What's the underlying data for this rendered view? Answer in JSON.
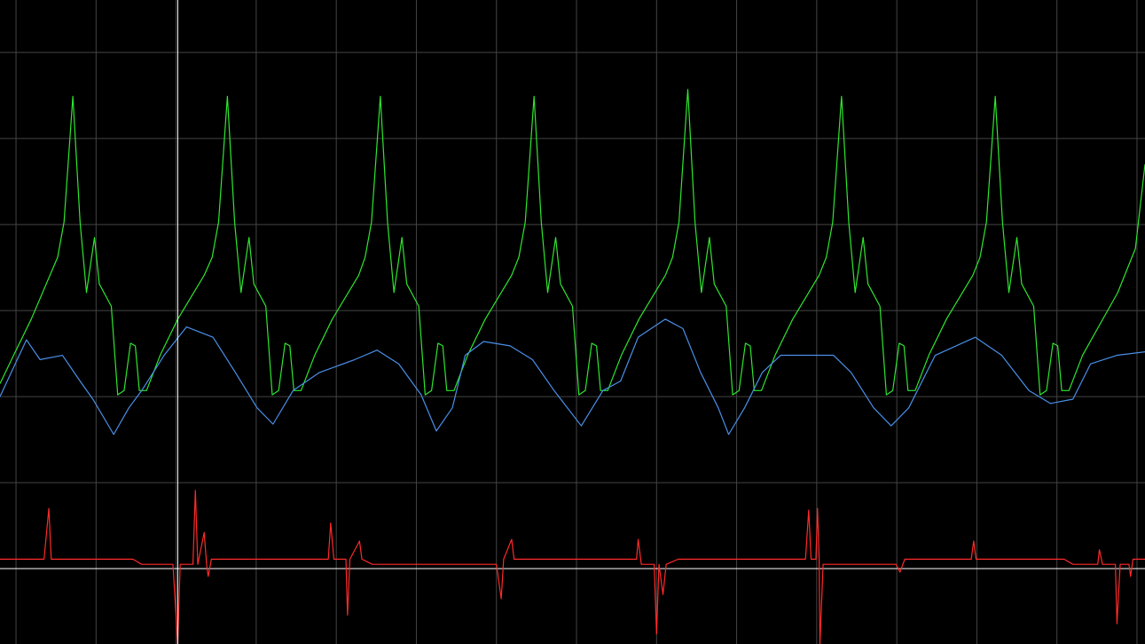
{
  "chart_data": {
    "type": "line",
    "background": "#000000",
    "grid": true,
    "grid_color": "#444444",
    "xlim": [
      -0.2,
      14.1
    ],
    "ylim": [
      -0.876,
      6.61
    ],
    "xticks": [
      0,
      1,
      2,
      3,
      4,
      5,
      6,
      7,
      8,
      9,
      10,
      11,
      12,
      13,
      14
    ],
    "yticks": [
      0,
      1,
      2,
      3,
      4,
      5,
      6
    ],
    "cursor_color": "#ffffff",
    "vlines": [
      2.02
    ],
    "hlines": [
      0
    ],
    "series": [
      {
        "color": "#2ee62e",
        "x": [
          -0.2,
          -0.03,
          0.19,
          0.52,
          0.6,
          0.71,
          0.8,
          0.88,
          0.98,
          1.04,
          1.19,
          1.27,
          1.35,
          1.43,
          1.49,
          1.54,
          1.63,
          1.8,
          2.02,
          2.35,
          2.45,
          2.53,
          2.64,
          2.73,
          2.81,
          2.91,
          2.97,
          3.12,
          3.2,
          3.28,
          3.36,
          3.42,
          3.47,
          3.56,
          3.73,
          3.95,
          4.28,
          4.36,
          4.44,
          4.55,
          4.64,
          4.72,
          4.82,
          4.88,
          5.03,
          5.11,
          5.19,
          5.27,
          5.33,
          5.38,
          5.47,
          5.64,
          5.86,
          6.19,
          6.28,
          6.36,
          6.47,
          6.56,
          6.64,
          6.74,
          6.8,
          6.95,
          7.03,
          7.11,
          7.19,
          7.25,
          7.3,
          7.39,
          7.56,
          7.78,
          8.11,
          8.2,
          8.28,
          8.39,
          8.48,
          8.56,
          8.66,
          8.72,
          8.87,
          8.95,
          9.03,
          9.11,
          9.17,
          9.22,
          9.31,
          9.48,
          9.7,
          10.03,
          10.12,
          10.2,
          10.31,
          10.4,
          10.48,
          10.58,
          10.64,
          10.79,
          10.87,
          10.95,
          11.03,
          11.09,
          11.14,
          11.23,
          11.4,
          11.62,
          11.95,
          12.04,
          12.12,
          12.23,
          12.32,
          12.4,
          12.5,
          12.56,
          12.71,
          12.79,
          12.87,
          12.95,
          13.01,
          13.06,
          13.15,
          13.32,
          13.76,
          13.98,
          14.1
        ],
        "values": [
          2.15,
          2.48,
          2.9,
          3.62,
          4.03,
          5.49,
          4.03,
          3.21,
          3.85,
          3.31,
          3.05,
          2.02,
          2.07,
          2.62,
          2.59,
          2.07,
          2.07,
          2.48,
          2.9,
          3.41,
          3.62,
          4.03,
          5.49,
          4.03,
          3.21,
          3.85,
          3.31,
          3.05,
          2.02,
          2.07,
          2.62,
          2.59,
          2.07,
          2.07,
          2.48,
          2.9,
          3.41,
          3.62,
          4.03,
          5.49,
          4.03,
          3.21,
          3.85,
          3.31,
          3.05,
          2.02,
          2.07,
          2.62,
          2.59,
          2.07,
          2.07,
          2.48,
          2.9,
          3.41,
          3.62,
          4.03,
          5.49,
          4.03,
          3.21,
          3.85,
          3.31,
          3.05,
          2.02,
          2.07,
          2.62,
          2.59,
          2.07,
          2.07,
          2.48,
          2.9,
          3.41,
          3.62,
          4.03,
          5.57,
          4.03,
          3.21,
          3.85,
          3.31,
          3.05,
          2.02,
          2.07,
          2.62,
          2.59,
          2.07,
          2.07,
          2.48,
          2.9,
          3.41,
          3.62,
          4.03,
          5.49,
          4.03,
          3.21,
          3.85,
          3.31,
          3.05,
          2.02,
          2.07,
          2.62,
          2.59,
          2.07,
          2.07,
          2.48,
          2.9,
          3.41,
          3.62,
          4.03,
          5.49,
          4.03,
          3.21,
          3.85,
          3.31,
          3.05,
          2.02,
          2.07,
          2.62,
          2.59,
          2.07,
          2.07,
          2.48,
          3.21,
          3.72,
          4.7
        ]
      },
      {
        "color": "#4a8fe8",
        "x": [
          -0.2,
          0.13,
          0.3,
          0.58,
          0.8,
          0.96,
          1.22,
          1.41,
          1.57,
          1.85,
          2.13,
          2.46,
          2.74,
          3.01,
          3.21,
          3.46,
          3.79,
          4.23,
          4.51,
          4.78,
          5.06,
          5.25,
          5.45,
          5.61,
          5.84,
          6.17,
          6.45,
          6.72,
          7.06,
          7.33,
          7.55,
          7.77,
          8.11,
          8.33,
          8.55,
          8.77,
          8.9,
          9.1,
          9.32,
          9.55,
          9.88,
          10.21,
          10.43,
          10.71,
          10.93,
          11.15,
          11.48,
          11.98,
          12.31,
          12.65,
          12.92,
          13.2,
          13.42,
          13.75,
          14.1
        ],
        "values": [
          2.0,
          2.66,
          2.43,
          2.48,
          2.18,
          1.97,
          1.56,
          1.87,
          2.07,
          2.48,
          2.81,
          2.69,
          2.28,
          1.87,
          1.68,
          2.07,
          2.28,
          2.43,
          2.54,
          2.38,
          2.02,
          1.6,
          1.87,
          2.48,
          2.64,
          2.59,
          2.43,
          2.07,
          1.66,
          2.07,
          2.18,
          2.69,
          2.9,
          2.79,
          2.28,
          1.87,
          1.56,
          1.87,
          2.28,
          2.48,
          2.48,
          2.48,
          2.28,
          1.87,
          1.66,
          1.87,
          2.48,
          2.69,
          2.48,
          2.07,
          1.92,
          1.97,
          2.38,
          2.48,
          2.52
        ]
      },
      {
        "color": "#ff2a2a",
        "x": [
          -0.2,
          0.35,
          0.41,
          0.44,
          1.46,
          1.57,
          1.96,
          2.02,
          2.05,
          2.21,
          2.24,
          2.27,
          2.35,
          2.38,
          2.4,
          2.44,
          3.9,
          3.93,
          3.97,
          4.12,
          4.14,
          4.17,
          4.29,
          4.32,
          4.45,
          6.0,
          6.06,
          6.09,
          6.19,
          6.22,
          7.75,
          7.77,
          7.81,
          7.97,
          8.0,
          8.03,
          8.08,
          8.12,
          8.27,
          9.86,
          9.9,
          9.93,
          9.99,
          10.01,
          10.03,
          10.04,
          10.08,
          10.99,
          11.04,
          11.1,
          11.93,
          11.96,
          11.99,
          13.09,
          13.2,
          13.51,
          13.53,
          13.57,
          13.73,
          13.75,
          13.79,
          13.9,
          13.92,
          13.95,
          14.1
        ],
        "values": [
          0.11,
          0.11,
          0.7,
          0.11,
          0.11,
          0.05,
          0.05,
          -0.88,
          0.05,
          0.05,
          0.91,
          0.05,
          0.42,
          0.05,
          -0.09,
          0.11,
          0.11,
          0.53,
          0.11,
          0.11,
          -0.54,
          0.11,
          0.32,
          0.11,
          0.05,
          0.05,
          -0.35,
          0.11,
          0.34,
          0.11,
          0.11,
          0.34,
          0.05,
          0.05,
          -0.76,
          0.05,
          -0.3,
          0.05,
          0.11,
          0.11,
          0.68,
          0.11,
          0.11,
          0.7,
          0.11,
          -0.88,
          0.05,
          0.05,
          -0.04,
          0.11,
          0.11,
          0.32,
          0.11,
          0.11,
          0.05,
          0.05,
          0.22,
          0.05,
          0.05,
          -0.64,
          0.05,
          0.05,
          -0.09,
          0.11,
          0.11
        ]
      }
    ]
  }
}
